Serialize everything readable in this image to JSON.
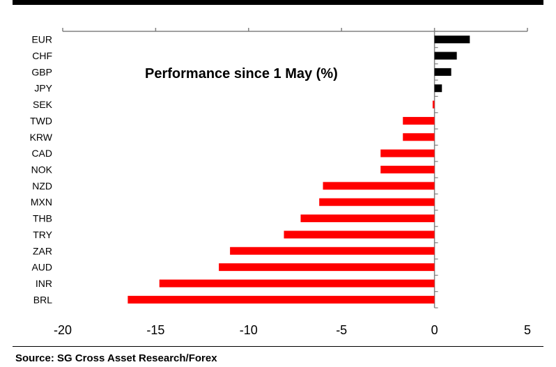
{
  "chart_data": {
    "type": "bar",
    "orientation": "horizontal",
    "title": "Performance since 1 May (%)",
    "categories": [
      "EUR",
      "CHF",
      "GBP",
      "JPY",
      "SEK",
      "TWD",
      "KRW",
      "CAD",
      "NOK",
      "NZD",
      "MXN",
      "THB",
      "TRY",
      "ZAR",
      "AUD",
      "INR",
      "BRL"
    ],
    "values": [
      1.9,
      1.2,
      0.9,
      0.4,
      -0.1,
      -1.7,
      -1.7,
      -2.9,
      -2.9,
      -6.0,
      -6.2,
      -7.2,
      -8.1,
      -11.0,
      -11.6,
      -14.8,
      -16.5
    ],
    "xlim": [
      -20,
      5
    ],
    "xticks": [
      -20,
      -15,
      -10,
      -5,
      0,
      5
    ],
    "xtick_labels": [
      "-20",
      "-15",
      "-10",
      "-5",
      "0",
      "5"
    ],
    "xlabel": "",
    "ylabel": "",
    "grid": false,
    "colors": {
      "positive": "#000000",
      "negative": "#ff0000",
      "axis": "#808080"
    }
  },
  "source": "Source: SG Cross Asset Research/Forex"
}
